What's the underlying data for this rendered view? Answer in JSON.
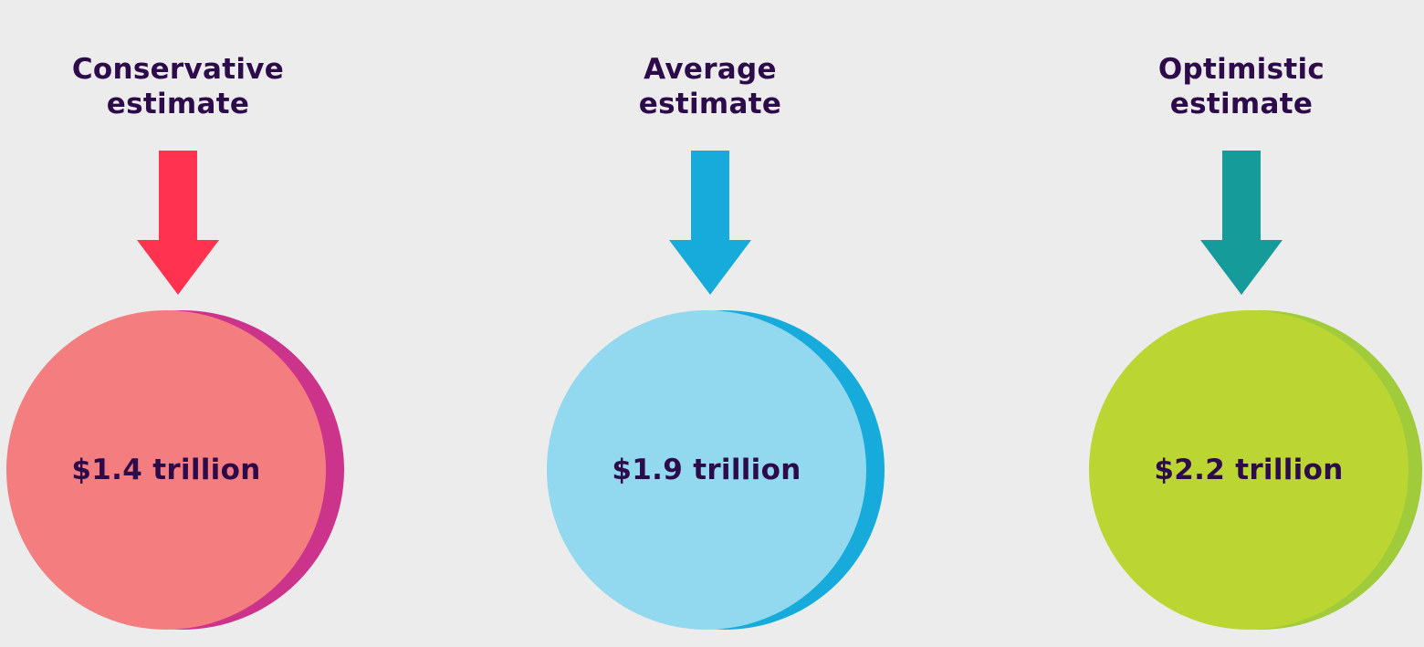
{
  "estimates": [
    {
      "label_line1": "Conservative",
      "label_line2": "estimate",
      "value": "$1.4 trillion",
      "arrow_color": "#ff3350",
      "circle_color": "#f47d80",
      "circle_shadow_color": "#cc338a"
    },
    {
      "label_line1": "Average",
      "label_line2": "estimate",
      "value": "$1.9 trillion",
      "arrow_color": "#16abdb",
      "circle_color": "#92d8ef",
      "circle_shadow_color": "#16abdb"
    },
    {
      "label_line1": "Optimistic",
      "label_line2": "estimate",
      "value": "$2.2 trillion",
      "arrow_color": "#169b9b",
      "circle_color": "#bbd532",
      "circle_shadow_color": "#a0cb3a"
    }
  ]
}
